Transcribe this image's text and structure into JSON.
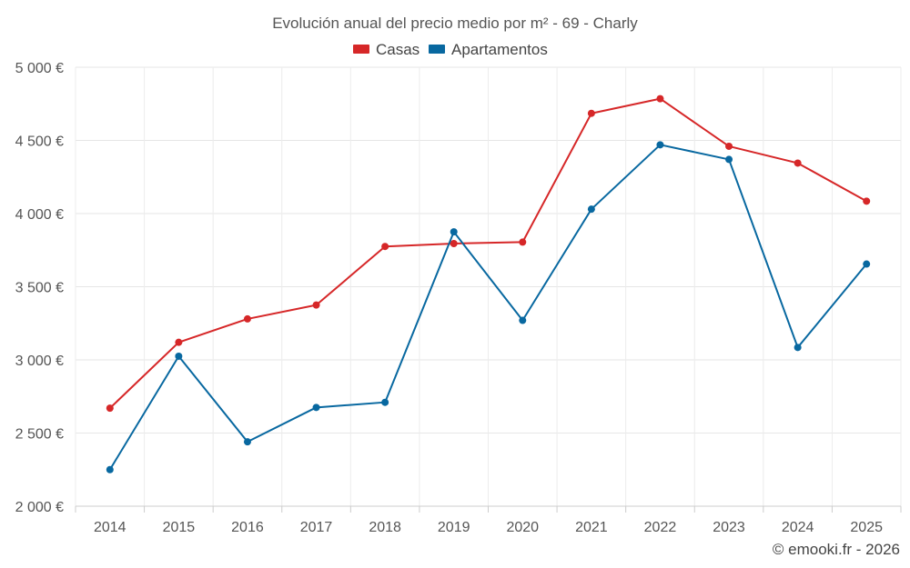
{
  "chart_data": {
    "type": "line",
    "title": "Evolución anual del precio medio por m² - 69 - Charly",
    "xlabel": "",
    "ylabel": "",
    "categories": [
      "2014",
      "2015",
      "2016",
      "2017",
      "2018",
      "2019",
      "2020",
      "2021",
      "2022",
      "2023",
      "2024",
      "2025"
    ],
    "series": [
      {
        "name": "Casas",
        "color": "#d62728",
        "values": [
          2670,
          3120,
          3280,
          3375,
          3775,
          3795,
          3805,
          4685,
          4785,
          4460,
          4345,
          4085
        ]
      },
      {
        "name": "Apartamentos",
        "color": "#0868a0",
        "values": [
          2250,
          3025,
          2440,
          2675,
          2710,
          3875,
          3270,
          4030,
          4470,
          4370,
          3085,
          3655
        ]
      }
    ],
    "ylim": [
      2000,
      5000
    ],
    "yticks": [
      2000,
      2500,
      3000,
      3500,
      4000,
      4500,
      5000
    ],
    "ytick_labels": [
      "2 000 €",
      "2 500 €",
      "3 000 €",
      "3 500 €",
      "4 000 €",
      "4 500 €",
      "5 000 €"
    ],
    "grid": true,
    "legend_position": "top-center"
  },
  "credit": "© emooki.fr - 2026"
}
